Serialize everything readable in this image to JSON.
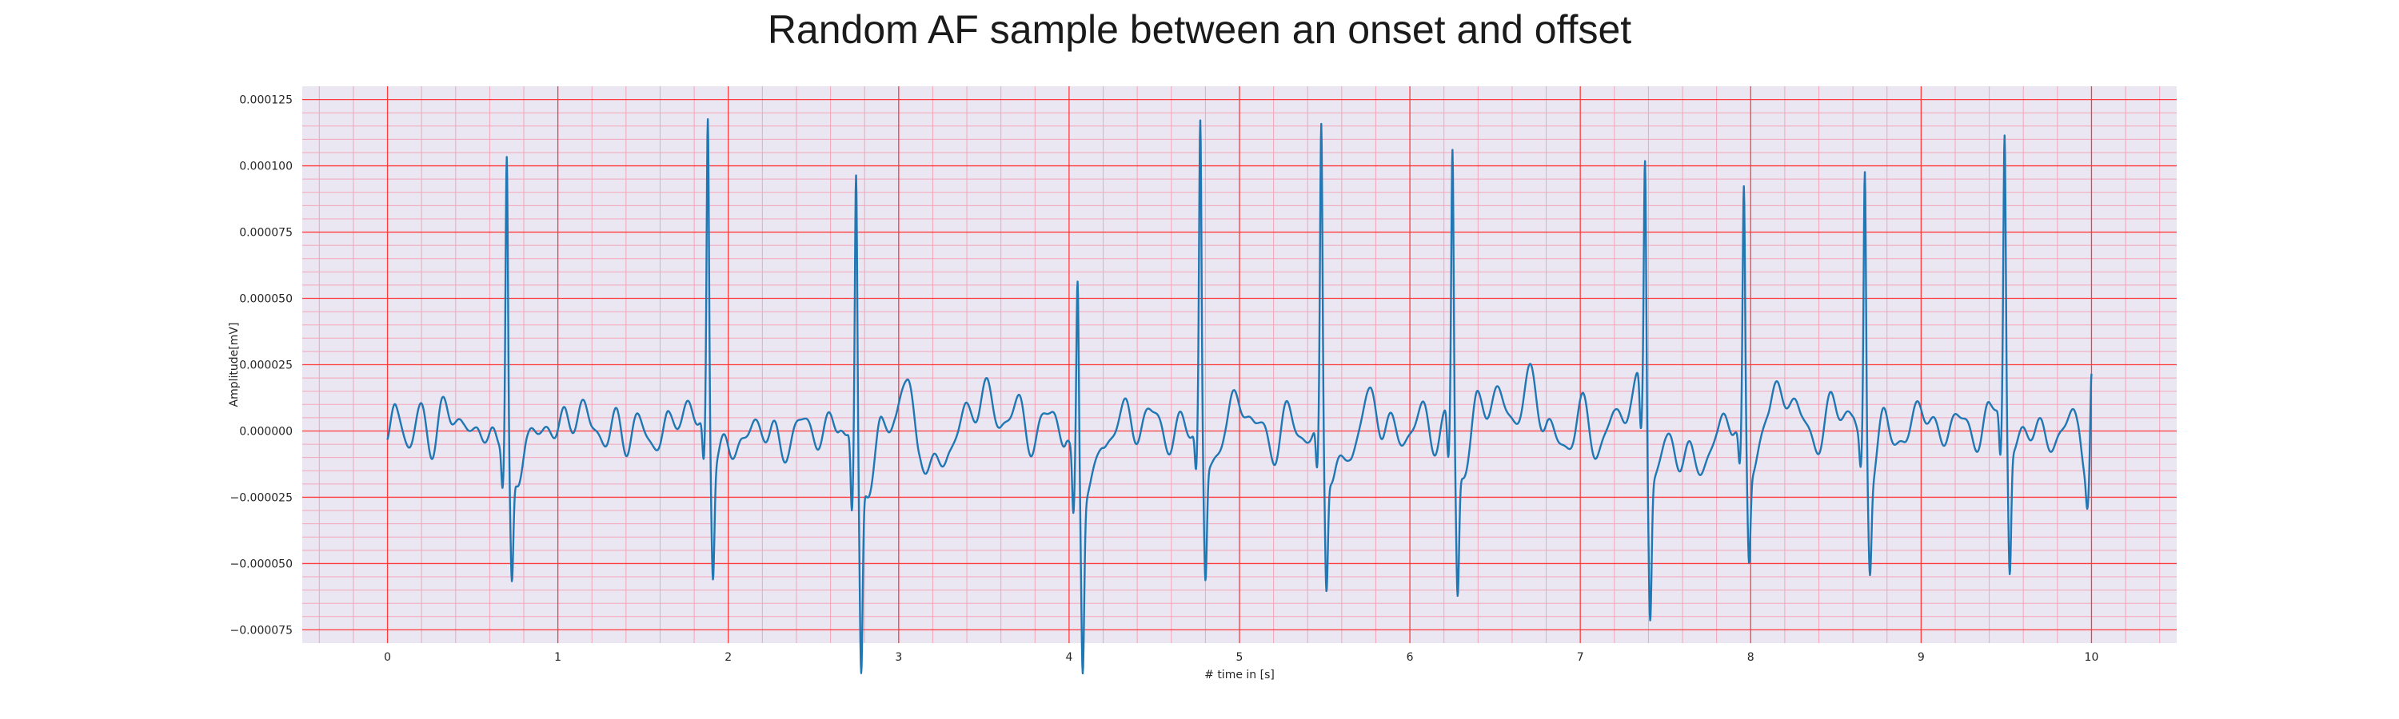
{
  "chart_data": {
    "type": "line",
    "title": "Random AF sample between an onset and offset",
    "xlabel": "# time in [s]",
    "ylabel": "Amplitude[mV]",
    "xlim": [
      -0.5,
      10.5
    ],
    "ylim": [
      -8e-05,
      0.00013
    ],
    "x_ticks": [
      0,
      1,
      2,
      3,
      4,
      5,
      6,
      7,
      8,
      9,
      10
    ],
    "x_tick_labels": [
      "0",
      "1",
      "2",
      "3",
      "4",
      "5",
      "6",
      "7",
      "8",
      "9",
      "10"
    ],
    "y_ticks": [
      -7.5e-05,
      -5e-05,
      -2.5e-05,
      0,
      2.5e-05,
      5e-05,
      7.5e-05,
      0.0001,
      0.000125
    ],
    "y_tick_labels": [
      "−0.000075",
      "−0.000050",
      "−0.000025",
      "0.000000",
      "0.000025",
      "0.000050",
      "0.000075",
      "0.000100",
      "0.000125"
    ],
    "grid": "major and minor",
    "colors": {
      "line": "#1f77b4",
      "plot_background": "#eae6f2",
      "major_grid": "#ff3b3b",
      "minor_grid": "#f4a5b8"
    },
    "series": [
      {
        "x_start": 0,
        "x_end": 10,
        "baseline": [
          [
            0,
            -6e-06
          ],
          [
            0.05,
            8e-06
          ],
          [
            0.12,
            -4e-06
          ],
          [
            0.18,
            6e-06
          ],
          [
            0.25,
            -5e-06
          ],
          [
            0.32,
            9e-06
          ],
          [
            0.38,
            2e-06
          ],
          [
            0.45,
            7e-06
          ],
          [
            0.52,
            -6e-06
          ],
          [
            0.6,
            4e-06
          ],
          [
            0.66,
            -8e-06
          ],
          [
            0.75,
            -1.6e-05
          ],
          [
            0.82,
            -8e-06
          ],
          [
            0.9,
            5e-06
          ],
          [
            0.98,
            -4e-06
          ],
          [
            1.05,
            8e-06
          ],
          [
            1.12,
            4e-06
          ],
          [
            1.2,
            6e-06
          ],
          [
            1.28,
            -6e-06
          ],
          [
            1.35,
            5e-06
          ],
          [
            1.42,
            -4e-06
          ],
          [
            1.5,
            3e-06
          ],
          [
            1.58,
            -6e-06
          ],
          [
            1.65,
            2e-06
          ],
          [
            1.72,
            9e-06
          ],
          [
            1.8,
            3e-06
          ],
          [
            1.85,
            6e-06
          ],
          [
            1.93,
            -1.4e-05
          ],
          [
            2.0,
            -2e-06
          ],
          [
            2.08,
            -8e-06
          ],
          [
            2.16,
            5e-06
          ],
          [
            2.25,
            -3e-06
          ],
          [
            2.35,
            -5e-06
          ],
          [
            2.45,
            4e-06
          ],
          [
            2.55,
            -3e-06
          ],
          [
            2.65,
            6e-06
          ],
          [
            2.7,
            -4e-06
          ],
          [
            2.8,
            -2.2e-05
          ],
          [
            2.9,
            -2e-06
          ],
          [
            2.98,
            8e-06
          ],
          [
            3.05,
            1.8e-05
          ],
          [
            3.12,
            -6e-06
          ],
          [
            3.2,
            -1.6e-05
          ],
          [
            3.3,
            -6e-06
          ],
          [
            3.4,
            6e-06
          ],
          [
            3.5,
            1.4e-05
          ],
          [
            3.6,
            4e-06
          ],
          [
            3.7,
            8e-06
          ],
          [
            3.8,
            -4e-06
          ],
          [
            3.9,
            9e-06
          ],
          [
            3.98,
            -4e-06
          ],
          [
            4.03,
            -1.5e-05
          ],
          [
            4.12,
            -2.2e-05
          ],
          [
            4.2,
            -6e-06
          ],
          [
            4.3,
            6e-06
          ],
          [
            4.4,
            2e-06
          ],
          [
            4.5,
            6e-06
          ],
          [
            4.6,
            -4e-06
          ],
          [
            4.7,
            4e-06
          ],
          [
            4.75,
            1e-06
          ],
          [
            4.82,
            -1.6e-05
          ],
          [
            4.92,
            3e-06
          ],
          [
            5.0,
            1.2e-05
          ],
          [
            5.1,
            2e-06
          ],
          [
            5.2,
            -6e-06
          ],
          [
            5.3,
            6e-06
          ],
          [
            5.4,
            -4e-06
          ],
          [
            5.48,
            -2e-06
          ],
          [
            5.56,
            -1.8e-05
          ],
          [
            5.65,
            -8e-06
          ],
          [
            5.75,
            1.1e-05
          ],
          [
            5.85,
            4e-06
          ],
          [
            5.95,
            -4e-06
          ],
          [
            6.05,
            6e-06
          ],
          [
            6.15,
            -2e-06
          ],
          [
            6.22,
            4e-06
          ],
          [
            6.3,
            -1.6e-05
          ],
          [
            6.4,
            8e-06
          ],
          [
            6.5,
            1.4e-05
          ],
          [
            6.6,
            4e-06
          ],
          [
            6.7,
            1.8e-05
          ],
          [
            6.8,
            4e-06
          ],
          [
            6.9,
            -8e-06
          ],
          [
            7.0,
            8e-06
          ],
          [
            7.1,
            -6e-06
          ],
          [
            7.2,
            4e-06
          ],
          [
            7.3,
            1.2e-05
          ],
          [
            7.35,
            1.6e-05
          ],
          [
            7.42,
            -1.8e-05
          ],
          [
            7.5,
            -6e-06
          ],
          [
            7.6,
            -8e-06
          ],
          [
            7.7,
            -1.4e-05
          ],
          [
            7.8,
            -2e-06
          ],
          [
            7.9,
            6e-06
          ],
          [
            7.95,
            -4e-06
          ],
          [
            8.0,
            -1.6e-05
          ],
          [
            8.1,
            8e-06
          ],
          [
            8.2,
            1.6e-05
          ],
          [
            8.3,
            4e-06
          ],
          [
            8.4,
            -4e-06
          ],
          [
            8.5,
            1.2e-05
          ],
          [
            8.6,
            3e-06
          ],
          [
            8.65,
            -4e-06
          ],
          [
            8.7,
            -1.6e-05
          ],
          [
            8.8,
            4e-06
          ],
          [
            8.9,
            -6e-06
          ],
          [
            9.0,
            1.2e-05
          ],
          [
            9.1,
            -4e-06
          ],
          [
            9.2,
            6e-06
          ],
          [
            9.3,
            -2e-06
          ],
          [
            9.4,
            4e-06
          ],
          [
            9.46,
            1.2e-05
          ],
          [
            9.55,
            -8e-06
          ],
          [
            9.65,
            4e-06
          ],
          [
            9.75,
            -6e-06
          ],
          [
            9.85,
            4e-06
          ],
          [
            9.92,
            1e-06
          ],
          [
            10.0,
            -2e-05
          ]
        ],
        "qrs_complexes": [
          [
            0.7,
            0.000113,
            -4.2e-05
          ],
          [
            1.88,
            0.00012,
            -4.3e-05
          ],
          [
            2.75,
            0.000108,
            -7.3e-05
          ],
          [
            4.05,
            7.2e-05,
            -6.5e-05
          ],
          [
            4.77,
            0.000117,
            -4.5e-05
          ],
          [
            5.48,
            0.000116,
            -4.7e-05
          ],
          [
            6.25,
            0.000108,
            -4.9e-05
          ],
          [
            7.38,
            0.000102,
            -5.2e-05
          ],
          [
            7.96,
            9.2e-05,
            -3.6e-05
          ],
          [
            8.67,
            0.000106,
            -3.3e-05
          ],
          [
            9.49,
            0.000106,
            -5e-05
          ],
          [
            10.0,
            3.9e-05,
            -2.6e-05
          ]
        ]
      }
    ]
  }
}
